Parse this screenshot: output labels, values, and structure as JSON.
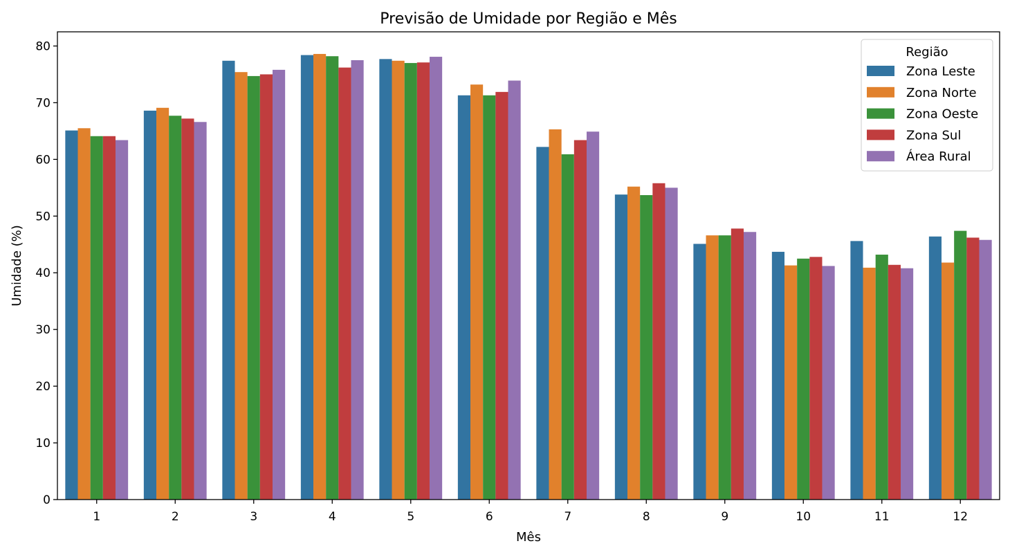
{
  "chart_data": {
    "type": "bar",
    "title": "Previsão de Umidade por Região e Mês",
    "xlabel": "Mês",
    "ylabel": "Umidade (%)",
    "ylim": [
      0,
      82.5
    ],
    "yticks": [
      0,
      10,
      20,
      30,
      40,
      50,
      60,
      70,
      80
    ],
    "categories": [
      "1",
      "2",
      "3",
      "4",
      "5",
      "6",
      "7",
      "8",
      "9",
      "10",
      "11",
      "12"
    ],
    "legend": {
      "title": "Região",
      "placement": "top-right"
    },
    "grid": false,
    "series": [
      {
        "name": "Zona Leste",
        "color": "#3274a1",
        "values": [
          65.1,
          68.6,
          77.4,
          78.4,
          77.7,
          71.3,
          62.2,
          53.8,
          45.1,
          43.7,
          45.6,
          46.4
        ]
      },
      {
        "name": "Zona Norte",
        "color": "#e1812c",
        "values": [
          65.5,
          69.1,
          75.4,
          78.6,
          77.4,
          73.2,
          65.3,
          55.2,
          46.6,
          41.3,
          40.9,
          41.8
        ]
      },
      {
        "name": "Zona Oeste",
        "color": "#3a923a",
        "values": [
          64.1,
          67.7,
          74.7,
          78.2,
          77.0,
          71.3,
          60.9,
          53.7,
          46.6,
          42.5,
          43.2,
          47.4
        ]
      },
      {
        "name": "Zona Sul",
        "color": "#c03d3e",
        "values": [
          64.1,
          67.2,
          75.0,
          76.2,
          77.1,
          71.9,
          63.4,
          55.8,
          47.8,
          42.8,
          41.4,
          46.2
        ]
      },
      {
        "name": "Área Rural",
        "color": "#9372b2",
        "values": [
          63.4,
          66.6,
          75.8,
          77.5,
          78.1,
          73.9,
          64.9,
          55.0,
          47.2,
          41.2,
          40.8,
          45.8
        ]
      }
    ]
  }
}
